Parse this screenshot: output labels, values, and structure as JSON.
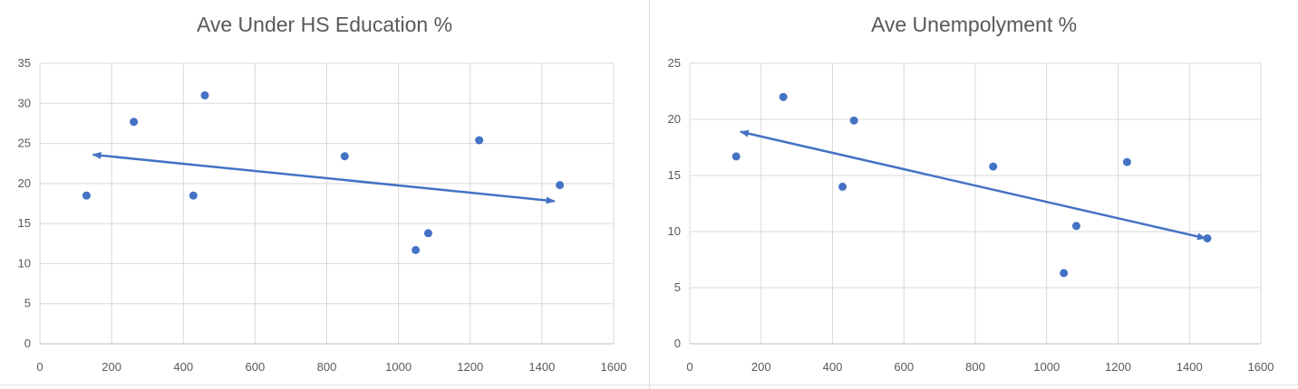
{
  "chart_data": [
    {
      "type": "scatter",
      "title": "Ave Under HS Education %",
      "xlabel": "",
      "ylabel": "",
      "xlim": [
        0,
        1600
      ],
      "ylim": [
        0,
        35
      ],
      "x_ticks": [
        0,
        200,
        400,
        600,
        800,
        1000,
        1200,
        1400,
        1600
      ],
      "y_ticks": [
        0,
        5,
        10,
        15,
        20,
        25,
        30,
        35
      ],
      "grid": true,
      "legend": "none",
      "marker_color": "#4472c4",
      "points": [
        {
          "x": 130,
          "y": 18.5
        },
        {
          "x": 262,
          "y": 27.7
        },
        {
          "x": 428,
          "y": 18.5
        },
        {
          "x": 460,
          "y": 31.0
        },
        {
          "x": 850,
          "y": 23.4
        },
        {
          "x": 1048,
          "y": 11.7
        },
        {
          "x": 1083,
          "y": 13.8
        },
        {
          "x": 1225,
          "y": 25.4
        },
        {
          "x": 1450,
          "y": 19.8
        }
      ],
      "trend_arrow": {
        "x1": 148,
        "y1": 23.6,
        "x2": 1435,
        "y2": 17.8
      }
    },
    {
      "type": "scatter",
      "title": "Ave Unempolyment %",
      "xlabel": "",
      "ylabel": "",
      "xlim": [
        0,
        1600
      ],
      "ylim": [
        0,
        25
      ],
      "x_ticks": [
        0,
        200,
        400,
        600,
        800,
        1000,
        1200,
        1400,
        1600
      ],
      "y_ticks": [
        0,
        5,
        10,
        15,
        20,
        25
      ],
      "grid": true,
      "legend": "none",
      "marker_color": "#4472c4",
      "points": [
        {
          "x": 130,
          "y": 16.7
        },
        {
          "x": 262,
          "y": 22.0
        },
        {
          "x": 428,
          "y": 14.0
        },
        {
          "x": 460,
          "y": 19.9
        },
        {
          "x": 850,
          "y": 15.8
        },
        {
          "x": 1048,
          "y": 6.3
        },
        {
          "x": 1083,
          "y": 10.5
        },
        {
          "x": 1225,
          "y": 16.2
        },
        {
          "x": 1450,
          "y": 9.4
        }
      ],
      "trend_arrow": {
        "x1": 142,
        "y1": 18.9,
        "x2": 1445,
        "y2": 9.4
      }
    }
  ]
}
